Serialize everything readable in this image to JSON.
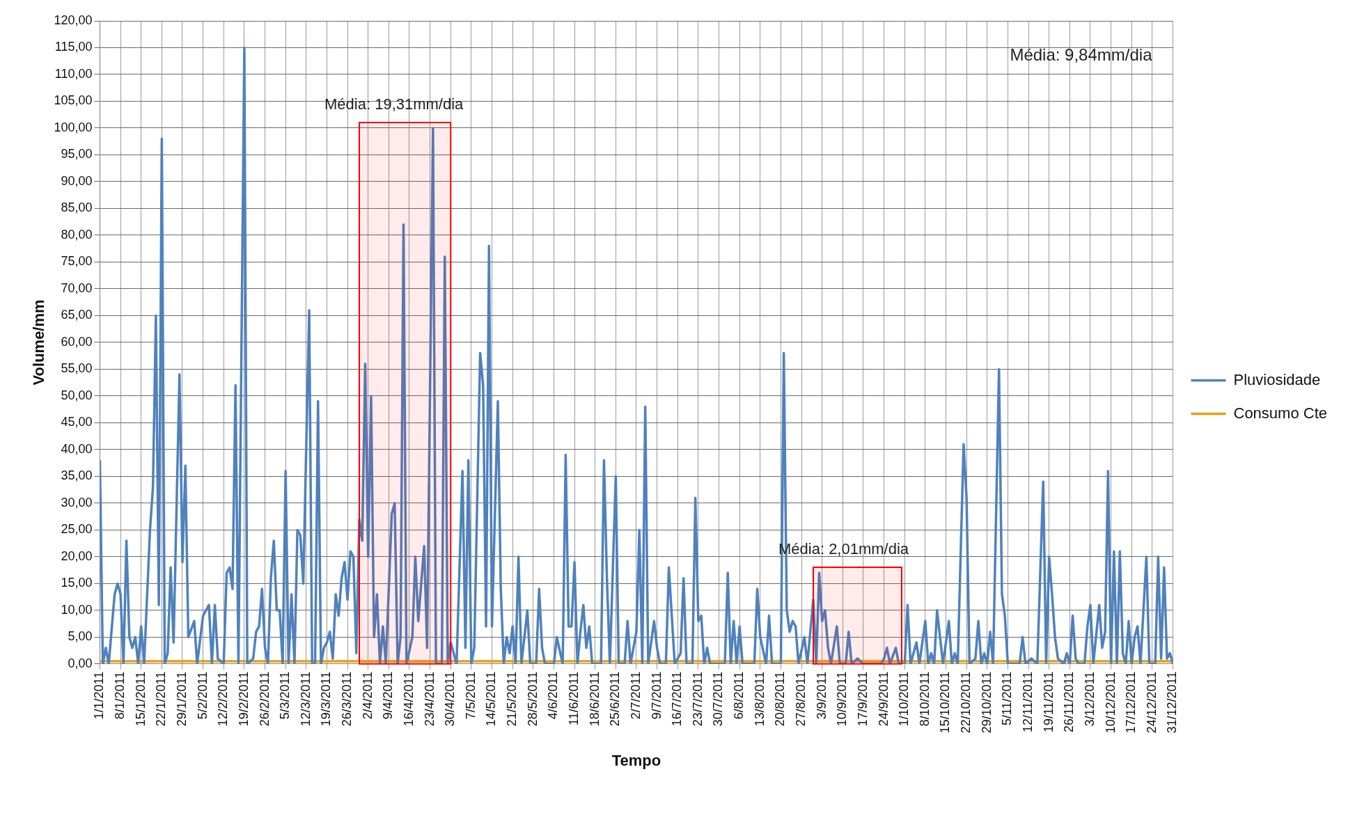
{
  "chart_data": {
    "type": "line",
    "xlabel": "Tempo",
    "ylabel": "Volume/mm",
    "xlim": [
      "2011-01-01",
      "2011-12-31"
    ],
    "xticks": [
      {
        "value": "2011-01-01",
        "label": "1/1/2011"
      },
      {
        "value": "2011-01-08",
        "label": "8/1/2011"
      },
      {
        "value": "2011-01-15",
        "label": "15/1/2011"
      },
      {
        "value": "2011-01-22",
        "label": "22/1/2011"
      },
      {
        "value": "2011-01-29",
        "label": "29/1/2011"
      },
      {
        "value": "2011-02-05",
        "label": "5/2/2011"
      },
      {
        "value": "2011-02-12",
        "label": "12/2/2011"
      },
      {
        "value": "2011-02-19",
        "label": "19/2/2011"
      },
      {
        "value": "2011-02-26",
        "label": "26/2/2011"
      },
      {
        "value": "2011-03-05",
        "label": "5/3/2011"
      },
      {
        "value": "2011-03-12",
        "label": "12/3/2011"
      },
      {
        "value": "2011-03-19",
        "label": "19/3/2011"
      },
      {
        "value": "2011-03-26",
        "label": "26/3/2011"
      },
      {
        "value": "2011-04-02",
        "label": "2/4/2011"
      },
      {
        "value": "2011-04-09",
        "label": "9/4/2011"
      },
      {
        "value": "2011-04-16",
        "label": "16/4/2011"
      },
      {
        "value": "2011-04-23",
        "label": "23/4/2011"
      },
      {
        "value": "2011-04-30",
        "label": "30/4/2011"
      },
      {
        "value": "2011-05-07",
        "label": "7/5/2011"
      },
      {
        "value": "2011-05-14",
        "label": "14/5/2011"
      },
      {
        "value": "2011-05-21",
        "label": "21/5/2011"
      },
      {
        "value": "2011-05-28",
        "label": "28/5/2011"
      },
      {
        "value": "2011-06-04",
        "label": "4/6/2011"
      },
      {
        "value": "2011-06-11",
        "label": "11/6/2011"
      },
      {
        "value": "2011-06-18",
        "label": "18/6/2011"
      },
      {
        "value": "2011-06-25",
        "label": "25/6/2011"
      },
      {
        "value": "2011-07-02",
        "label": "2/7/2011"
      },
      {
        "value": "2011-07-09",
        "label": "9/7/2011"
      },
      {
        "value": "2011-07-16",
        "label": "16/7/2011"
      },
      {
        "value": "2011-07-23",
        "label": "23/7/2011"
      },
      {
        "value": "2011-07-30",
        "label": "30/7/2011"
      },
      {
        "value": "2011-08-06",
        "label": "6/8/2011"
      },
      {
        "value": "2011-08-13",
        "label": "13/8/2011"
      },
      {
        "value": "2011-08-20",
        "label": "20/8/2011"
      },
      {
        "value": "2011-08-27",
        "label": "27/8/2011"
      },
      {
        "value": "2011-09-03",
        "label": "3/9/2011"
      },
      {
        "value": "2011-09-10",
        "label": "10/9/2011"
      },
      {
        "value": "2011-09-17",
        "label": "17/9/2011"
      },
      {
        "value": "2011-09-24",
        "label": "24/9/2011"
      },
      {
        "value": "2011-10-01",
        "label": "1/10/2011"
      },
      {
        "value": "2011-10-08",
        "label": "8/10/2011"
      },
      {
        "value": "2011-10-15",
        "label": "15/10/2011"
      },
      {
        "value": "2011-10-22",
        "label": "22/10/2011"
      },
      {
        "value": "2011-10-29",
        "label": "29/10/2011"
      },
      {
        "value": "2011-11-05",
        "label": "5/11/2011"
      },
      {
        "value": "2011-11-12",
        "label": "12/11/2011"
      },
      {
        "value": "2011-11-19",
        "label": "19/11/2011"
      },
      {
        "value": "2011-11-26",
        "label": "26/11/2011"
      },
      {
        "value": "2011-12-03",
        "label": "3/12/2011"
      },
      {
        "value": "2011-12-10",
        "label": "10/12/2011"
      },
      {
        "value": "2011-12-17",
        "label": "17/12/2011"
      },
      {
        "value": "2011-12-24",
        "label": "24/12/2011"
      },
      {
        "value": "2011-12-31",
        "label": "31/12/2011"
      }
    ],
    "ylim": [
      0,
      120
    ],
    "yticks": [
      {
        "value": 0,
        "label": "0,00"
      },
      {
        "value": 5,
        "label": "5,00"
      },
      {
        "value": 10,
        "label": "10,00"
      },
      {
        "value": 15,
        "label": "15,00"
      },
      {
        "value": 20,
        "label": "20,00"
      },
      {
        "value": 25,
        "label": "25,00"
      },
      {
        "value": 30,
        "label": "30,00"
      },
      {
        "value": 35,
        "label": "35,00"
      },
      {
        "value": 40,
        "label": "40,00"
      },
      {
        "value": 45,
        "label": "45,00"
      },
      {
        "value": 50,
        "label": "50,00"
      },
      {
        "value": 55,
        "label": "55,00"
      },
      {
        "value": 60,
        "label": "60,00"
      },
      {
        "value": 65,
        "label": "65,00"
      },
      {
        "value": 70,
        "label": "70,00"
      },
      {
        "value": 75,
        "label": "75,00"
      },
      {
        "value": 80,
        "label": "80,00"
      },
      {
        "value": 85,
        "label": "85,00"
      },
      {
        "value": 90,
        "label": "90,00"
      },
      {
        "value": 95,
        "label": "95,00"
      },
      {
        "value": 100,
        "label": "100,00"
      },
      {
        "value": 105,
        "label": "105,00"
      },
      {
        "value": 110,
        "label": "110,00"
      },
      {
        "value": 115,
        "label": "115,00"
      },
      {
        "value": 120,
        "label": "120,00"
      }
    ],
    "grid": true,
    "legend": "right",
    "marker": "none",
    "line_style": "solid",
    "series": [
      {
        "name": "Pluviosidade",
        "color": "#4f81bd",
        "x": [
          "2011-01-01",
          "2011-01-02",
          "2011-01-03",
          "2011-01-04",
          "2011-01-06",
          "2011-01-07",
          "2011-01-08",
          "2011-01-09",
          "2011-01-10",
          "2011-01-11",
          "2011-01-12",
          "2011-01-13",
          "2011-01-14",
          "2011-01-15",
          "2011-01-16",
          "2011-01-18",
          "2011-01-19",
          "2011-01-20",
          "2011-01-21",
          "2011-01-22",
          "2011-01-23",
          "2011-01-24",
          "2011-01-25",
          "2011-01-26",
          "2011-01-28",
          "2011-01-29",
          "2011-01-30",
          "2011-01-31",
          "2011-02-02",
          "2011-02-03",
          "2011-02-05",
          "2011-02-07",
          "2011-02-08",
          "2011-02-09",
          "2011-02-10",
          "2011-02-12",
          "2011-02-13",
          "2011-02-14",
          "2011-02-15",
          "2011-02-16",
          "2011-02-17",
          "2011-02-19",
          "2011-02-20",
          "2011-02-22",
          "2011-02-23",
          "2011-02-24",
          "2011-02-25",
          "2011-02-26",
          "2011-02-27",
          "2011-02-28",
          "2011-03-01",
          "2011-03-02",
          "2011-03-03",
          "2011-03-04",
          "2011-03-05",
          "2011-03-06",
          "2011-03-07",
          "2011-03-08",
          "2011-03-09",
          "2011-03-10",
          "2011-03-11",
          "2011-03-13",
          "2011-03-14",
          "2011-03-15",
          "2011-03-16",
          "2011-03-17",
          "2011-03-18",
          "2011-03-19",
          "2011-03-20",
          "2011-03-21",
          "2011-03-22",
          "2011-03-23",
          "2011-03-24",
          "2011-03-25",
          "2011-03-26",
          "2011-03-27",
          "2011-03-28",
          "2011-03-29",
          "2011-03-30",
          "2011-03-31",
          "2011-04-01",
          "2011-04-02",
          "2011-04-03",
          "2011-04-04",
          "2011-04-05",
          "2011-04-06",
          "2011-04-07",
          "2011-04-08",
          "2011-04-10",
          "2011-04-11",
          "2011-04-12",
          "2011-04-13",
          "2011-04-14",
          "2011-04-15",
          "2011-04-17",
          "2011-04-18",
          "2011-04-19",
          "2011-04-21",
          "2011-04-22",
          "2011-04-24",
          "2011-04-25",
          "2011-04-27",
          "2011-04-28",
          "2011-04-29",
          "2011-04-30",
          "2011-05-01",
          "2011-05-02",
          "2011-05-04",
          "2011-05-05",
          "2011-05-06",
          "2011-05-07",
          "2011-05-08",
          "2011-05-10",
          "2011-05-11",
          "2011-05-12",
          "2011-05-13",
          "2011-05-14",
          "2011-05-16",
          "2011-05-17",
          "2011-05-18",
          "2011-05-19",
          "2011-05-20",
          "2011-05-21",
          "2011-05-22",
          "2011-05-23",
          "2011-05-24",
          "2011-05-26",
          "2011-05-27",
          "2011-05-29",
          "2011-05-30",
          "2011-05-31",
          "2011-06-01",
          "2011-06-04",
          "2011-06-05",
          "2011-06-07",
          "2011-06-08",
          "2011-06-09",
          "2011-06-10",
          "2011-06-11",
          "2011-06-12",
          "2011-06-13",
          "2011-06-14",
          "2011-06-15",
          "2011-06-16",
          "2011-06-17",
          "2011-06-20",
          "2011-06-21",
          "2011-06-22",
          "2011-06-23",
          "2011-06-25",
          "2011-06-26",
          "2011-06-28",
          "2011-06-29",
          "2011-06-30",
          "2011-07-02",
          "2011-07-03",
          "2011-07-04",
          "2011-07-05",
          "2011-07-06",
          "2011-07-08",
          "2011-07-09",
          "2011-07-10",
          "2011-07-12",
          "2011-07-13",
          "2011-07-15",
          "2011-07-17",
          "2011-07-18",
          "2011-07-19",
          "2011-07-21",
          "2011-07-22",
          "2011-07-23",
          "2011-07-24",
          "2011-07-25",
          "2011-07-26",
          "2011-07-27",
          "2011-08-01",
          "2011-08-02",
          "2011-08-03",
          "2011-08-04",
          "2011-08-05",
          "2011-08-06",
          "2011-08-07",
          "2011-08-11",
          "2011-08-12",
          "2011-08-13",
          "2011-08-15",
          "2011-08-16",
          "2011-08-17",
          "2011-08-20",
          "2011-08-21",
          "2011-08-22",
          "2011-08-23",
          "2011-08-24",
          "2011-08-25",
          "2011-08-26",
          "2011-08-28",
          "2011-08-29",
          "2011-08-31",
          "2011-09-01",
          "2011-09-02",
          "2011-09-03",
          "2011-09-04",
          "2011-09-05",
          "2011-09-06",
          "2011-09-08",
          "2011-09-09",
          "2011-09-11",
          "2011-09-12",
          "2011-09-13",
          "2011-09-15",
          "2011-09-17",
          "2011-09-23",
          "2011-09-24",
          "2011-09-25",
          "2011-09-26",
          "2011-09-28",
          "2011-09-29",
          "2011-10-01",
          "2011-10-02",
          "2011-10-03",
          "2011-10-05",
          "2011-10-06",
          "2011-10-08",
          "2011-10-09",
          "2011-10-10",
          "2011-10-11",
          "2011-10-12",
          "2011-10-13",
          "2011-10-14",
          "2011-10-16",
          "2011-10-17",
          "2011-10-18",
          "2011-10-19",
          "2011-10-21",
          "2011-10-22",
          "2011-10-23",
          "2011-10-25",
          "2011-10-26",
          "2011-10-27",
          "2011-10-28",
          "2011-10-29",
          "2011-10-30",
          "2011-10-31",
          "2011-11-02",
          "2011-11-03",
          "2011-11-04",
          "2011-11-05",
          "2011-11-09",
          "2011-11-10",
          "2011-11-11",
          "2011-11-13",
          "2011-11-15",
          "2011-11-17",
          "2011-11-18",
          "2011-11-19",
          "2011-11-20",
          "2011-11-21",
          "2011-11-22",
          "2011-11-24",
          "2011-11-25",
          "2011-11-26",
          "2011-11-27",
          "2011-11-28",
          "2011-11-29",
          "2011-12-01",
          "2011-12-02",
          "2011-12-03",
          "2011-12-04",
          "2011-12-06",
          "2011-12-07",
          "2011-12-08",
          "2011-12-09",
          "2011-12-10",
          "2011-12-11",
          "2011-12-12",
          "2011-12-13",
          "2011-12-14",
          "2011-12-15",
          "2011-12-16",
          "2011-12-17",
          "2011-12-18",
          "2011-12-19",
          "2011-12-20",
          "2011-12-22",
          "2011-12-23",
          "2011-12-25",
          "2011-12-26",
          "2011-12-27",
          "2011-12-28",
          "2011-12-29",
          "2011-12-30",
          "2011-12-31"
        ],
        "values": [
          38,
          0,
          3,
          0,
          13,
          15,
          13,
          0,
          23,
          5,
          3,
          5,
          0,
          7,
          0,
          25,
          33,
          65,
          11,
          98,
          0,
          2,
          18,
          4,
          54,
          19,
          37,
          5,
          8,
          0,
          9,
          11,
          0,
          11,
          1,
          0,
          17,
          18,
          14,
          52,
          0,
          115,
          0,
          1,
          6,
          7,
          14,
          3,
          0,
          16,
          23,
          10,
          10,
          0,
          36,
          0,
          13,
          0,
          25,
          24,
          15,
          66,
          0,
          0,
          49,
          0,
          3,
          4,
          6,
          1,
          13,
          9,
          16,
          19,
          12,
          21,
          20,
          2,
          27,
          23,
          56,
          20,
          50,
          5,
          13,
          0,
          7,
          0,
          28,
          30,
          0,
          5,
          82,
          0,
          5,
          20,
          8,
          22,
          3,
          100,
          0,
          0,
          76,
          0,
          4,
          2,
          0,
          36,
          3,
          38,
          0,
          3,
          58,
          52,
          7,
          78,
          7,
          49,
          14,
          0,
          5,
          2,
          7,
          0,
          20,
          0,
          10,
          0,
          0,
          14,
          3,
          0,
          0,
          5,
          0,
          39,
          7,
          7,
          19,
          0,
          6,
          11,
          3,
          7,
          0,
          0,
          38,
          16,
          0,
          35,
          0,
          0,
          8,
          0,
          6,
          25,
          0,
          48,
          0,
          8,
          3,
          0,
          0,
          18,
          0,
          2,
          16,
          0,
          0,
          31,
          8,
          9,
          0,
          3,
          0,
          0,
          17,
          0,
          8,
          0,
          7,
          0,
          0,
          14,
          5,
          0,
          9,
          0,
          0,
          58,
          10,
          6,
          8,
          7,
          0,
          5,
          0,
          12,
          0,
          17,
          8,
          10,
          3,
          0,
          7,
          0,
          0,
          6,
          0,
          1,
          0,
          0,
          1,
          3,
          0,
          3,
          0,
          0,
          11,
          0,
          4,
          0,
          8,
          0,
          2,
          0,
          10,
          5,
          0,
          8,
          0,
          2,
          0,
          41,
          31,
          0,
          1,
          8,
          0,
          2,
          0,
          6,
          0,
          55,
          13,
          9,
          0,
          0,
          5,
          0,
          1,
          0,
          34,
          0,
          20,
          13,
          5,
          1,
          0,
          2,
          0,
          9,
          1,
          0,
          0,
          7,
          11,
          0,
          11,
          3,
          6,
          36,
          0,
          21,
          0,
          21,
          2,
          0,
          8,
          0,
          5,
          7,
          0,
          20,
          0,
          0,
          20,
          1,
          18,
          1,
          2,
          0
        ]
      },
      {
        "name": "Consumo Cte",
        "color": "#e8a010",
        "x": [
          "2011-01-01",
          "2011-12-31"
        ],
        "values": [
          0.5,
          0.5
        ]
      }
    ],
    "bands": [
      {
        "axis": "x",
        "from": "2011-03-30",
        "to": "2011-04-30",
        "label": "Média: 19,31mm/dia",
        "color": "#ff0000"
      },
      {
        "axis": "x",
        "from": "2011-08-31",
        "to": "2011-09-30",
        "label": "Média: 2,01mm/dia",
        "color": "#ff0000"
      }
    ],
    "annotations": [
      "Média: 9,84mm/dia"
    ]
  }
}
